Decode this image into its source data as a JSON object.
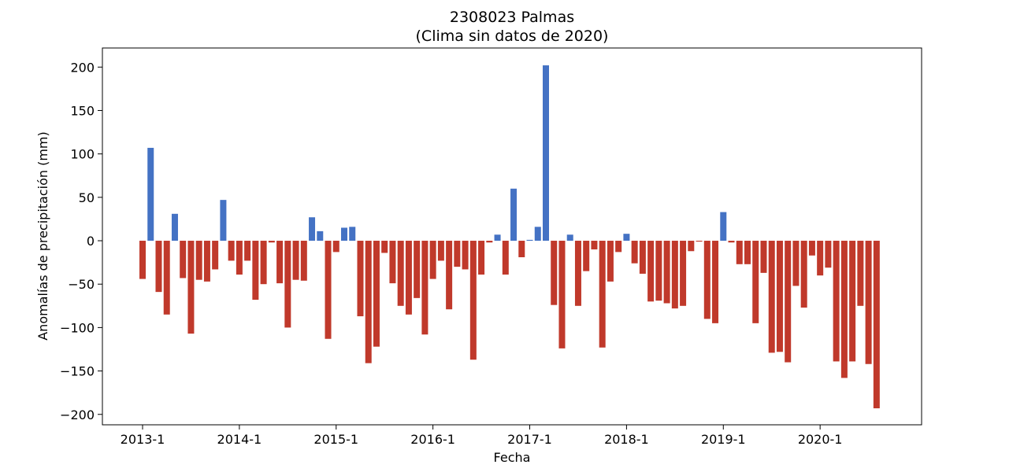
{
  "chart_data": {
    "type": "bar",
    "title_line1": "2308023 Palmas",
    "title_line2": "(Clima sin datos de 2020)",
    "xlabel": "Fecha",
    "ylabel": "Anomalías de precipitación (mm)",
    "ylim": [
      -212,
      222
    ],
    "yticks": [
      200,
      150,
      100,
      50,
      0,
      -50,
      -100,
      -150,
      -200
    ],
    "ytick_labels": [
      "200",
      "150",
      "100",
      "50",
      "0",
      "−50",
      "−100",
      "−150",
      "−200"
    ],
    "xtick_labels": [
      "2013-1",
      "2014-1",
      "2015-1",
      "2016-1",
      "2017-1",
      "2018-1",
      "2019-1",
      "2020-1"
    ],
    "xtick_indices": [
      0,
      12,
      24,
      36,
      48,
      60,
      72,
      84
    ],
    "grid": false,
    "positive_color": "#4472c4",
    "negative_color": "#c0392b",
    "values": [
      -44,
      107,
      -59,
      -85,
      31,
      -43,
      -107,
      -45,
      -47,
      -33,
      47,
      -23,
      -39,
      -23,
      -68,
      -50,
      -2,
      -49,
      -100,
      -45,
      -46,
      27,
      11,
      -113,
      -13,
      15,
      16,
      -87,
      -141,
      -122,
      -14,
      -49,
      -75,
      -85,
      -66,
      -108,
      -44,
      -23,
      -79,
      -30,
      -33,
      -137,
      -39,
      -2,
      7,
      -39,
      60,
      -19,
      1,
      16,
      202,
      -74,
      -124,
      7,
      -75,
      -35,
      -10,
      -123,
      -47,
      -13,
      8,
      -26,
      -38,
      -70,
      -69,
      -72,
      -78,
      -75,
      -12,
      -1,
      -90,
      -95,
      33,
      -2,
      -27,
      -27,
      -95,
      -37,
      -129,
      -128,
      -140,
      -52,
      -77,
      -17,
      -40,
      -31,
      -139,
      -158,
      -139,
      -75,
      -142,
      -193
    ]
  }
}
